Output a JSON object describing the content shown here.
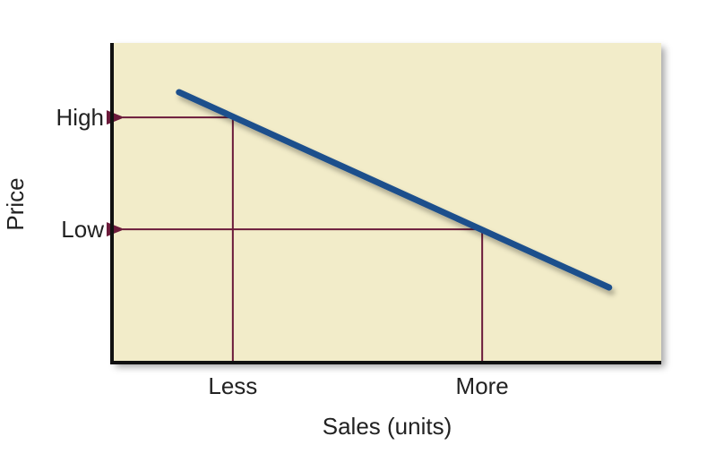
{
  "chart_data": {
    "type": "line",
    "title": "",
    "xlabel": "Sales (units)",
    "ylabel": "Price",
    "xlim": [
      0,
      10
    ],
    "ylim": [
      0,
      10
    ],
    "grid": false,
    "x_ticks": [
      {
        "label": "Less",
        "value": 2.2
      },
      {
        "label": "More",
        "value": 6.74
      }
    ],
    "y_ticks": [
      {
        "label": "High",
        "value": 7.67
      },
      {
        "label": "Low",
        "value": 4.17
      }
    ],
    "series": [
      {
        "x": [
          1.22,
          9.05
        ],
        "y": [
          8.46,
          2.35
        ]
      }
    ],
    "annotations": [
      {
        "type": "guide-arrow",
        "from_x": 2.2,
        "y": 7.67,
        "to_axis": "y"
      },
      {
        "type": "guide-arrow",
        "from_x": 6.74,
        "y": 4.17,
        "to_axis": "y"
      }
    ],
    "colors": {
      "plot_background": "#f2ecc9",
      "line": "#1d4f8c",
      "guides": "#6b1a3a",
      "axis": "#111111"
    }
  }
}
